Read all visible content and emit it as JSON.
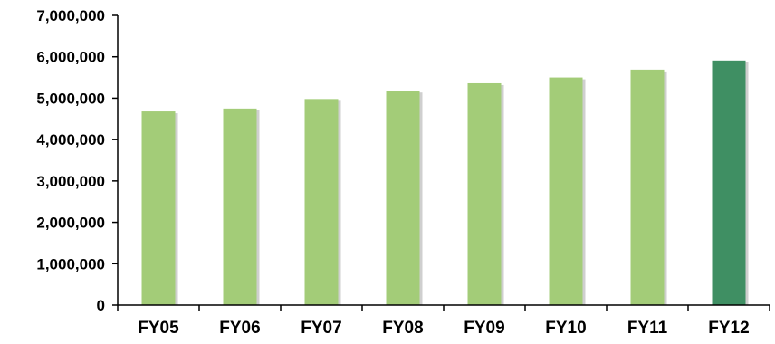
{
  "chart_data": {
    "type": "bar",
    "title": "",
    "xlabel": "",
    "ylabel": "",
    "categories": [
      "FY05",
      "FY06",
      "FY07",
      "FY08",
      "FY09",
      "FY10",
      "FY11",
      "FY12"
    ],
    "values": [
      4680000,
      4750000,
      4980000,
      5180000,
      5360000,
      5500000,
      5690000,
      5910000
    ],
    "ylim": [
      0,
      7000000
    ],
    "yticks": [
      0,
      1000000,
      2000000,
      3000000,
      4000000,
      5000000,
      6000000,
      7000000
    ],
    "ytick_labels": [
      "0",
      "1,000,000",
      "2,000,000",
      "3,000,000",
      "4,000,000",
      "5,000,000",
      "6,000,000",
      "7,000,000"
    ],
    "grid": false,
    "legend": "none",
    "colors": {
      "bar": "#a3cc78",
      "highlight_bar": "#3f8f63",
      "bar_shadow": "#cfcfcf",
      "axis": "#000000"
    },
    "highlight_category": "FY12"
  }
}
